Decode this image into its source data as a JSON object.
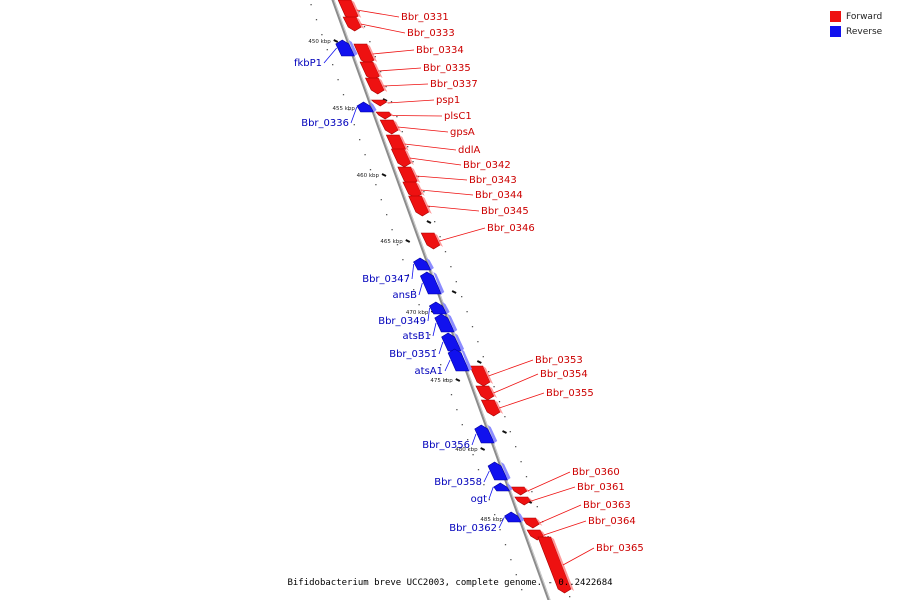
{
  "legend": [
    {
      "label": "Forward",
      "color": "#ee1111"
    },
    {
      "label": "Reverse",
      "color": "#1111ee"
    }
  ],
  "footer": "Bifidobacterium breve UCC2003, complete genome. - 0..2422684",
  "axis": {
    "ticks": [
      {
        "label": "450 kbp",
        "kbp": 450
      },
      {
        "label": "455 kbp",
        "kbp": 455
      },
      {
        "label": "460 kbp",
        "kbp": 460
      },
      {
        "label": "465 kbp",
        "kbp": 465
      },
      {
        "label": "470 kbp",
        "kbp": 470
      },
      {
        "label": "475 kbp",
        "kbp": 475
      },
      {
        "label": "480 kbp",
        "kbp": 480
      },
      {
        "label": "485 kbp",
        "kbp": 485
      }
    ]
  },
  "genes": [
    {
      "name": "Bbr_0331",
      "strand": "forward"
    },
    {
      "name": "Bbr_0333",
      "strand": "forward"
    },
    {
      "name": "Bbr_0334",
      "strand": "forward"
    },
    {
      "name": "Bbr_0335",
      "strand": "forward"
    },
    {
      "name": "Bbr_0337",
      "strand": "forward"
    },
    {
      "name": "psp1",
      "strand": "forward"
    },
    {
      "name": "plsC1",
      "strand": "forward"
    },
    {
      "name": "gpsA",
      "strand": "forward"
    },
    {
      "name": "ddlA",
      "strand": "forward"
    },
    {
      "name": "Bbr_0342",
      "strand": "forward"
    },
    {
      "name": "Bbr_0343",
      "strand": "forward"
    },
    {
      "name": "Bbr_0344",
      "strand": "forward"
    },
    {
      "name": "Bbr_0345",
      "strand": "forward"
    },
    {
      "name": "Bbr_0346",
      "strand": "forward"
    },
    {
      "name": "Bbr_0353",
      "strand": "forward"
    },
    {
      "name": "Bbr_0354",
      "strand": "forward"
    },
    {
      "name": "Bbr_0355",
      "strand": "forward"
    },
    {
      "name": "Bbr_0360",
      "strand": "forward"
    },
    {
      "name": "Bbr_0361",
      "strand": "forward"
    },
    {
      "name": "Bbr_0363",
      "strand": "forward"
    },
    {
      "name": "Bbr_0364",
      "strand": "forward"
    },
    {
      "name": "Bbr_0365",
      "strand": "forward"
    },
    {
      "name": "fkbP1",
      "strand": "reverse"
    },
    {
      "name": "Bbr_0336",
      "strand": "reverse"
    },
    {
      "name": "Bbr_0347",
      "strand": "reverse"
    },
    {
      "name": "ansB",
      "strand": "reverse"
    },
    {
      "name": "Bbr_0349",
      "strand": "reverse"
    },
    {
      "name": "atsB1",
      "strand": "reverse"
    },
    {
      "name": "Bbr_0351",
      "strand": "reverse"
    },
    {
      "name": "atsA1",
      "strand": "reverse"
    },
    {
      "name": "Bbr_0356",
      "strand": "reverse"
    },
    {
      "name": "Bbr_0358",
      "strand": "reverse"
    },
    {
      "name": "ogt",
      "strand": "reverse"
    },
    {
      "name": "Bbr_0362",
      "strand": "reverse"
    }
  ]
}
